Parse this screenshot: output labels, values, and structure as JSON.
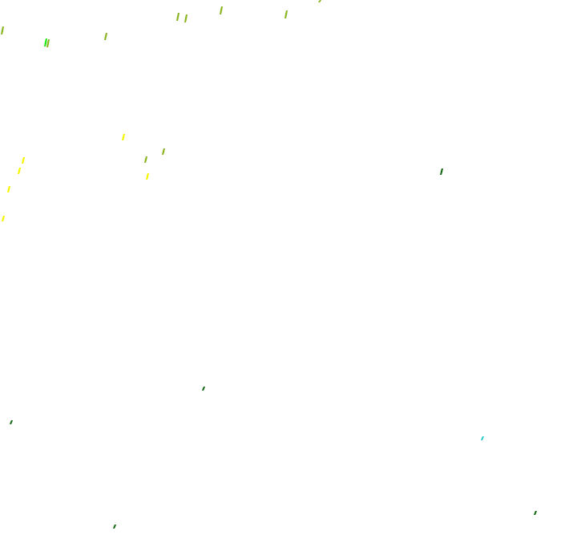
{
  "colors": {
    "background": "#ffffff",
    "olive": "#8cb523",
    "bright_green": "#22e81a",
    "yellow": "#f5f500",
    "dark_green": "#1a6b1a",
    "cyan": "#33cccc"
  }
}
